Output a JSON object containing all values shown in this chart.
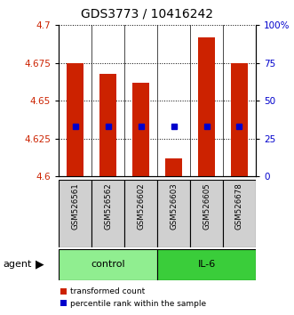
{
  "title": "GDS3773 / 10416242",
  "samples": [
    "GSM526561",
    "GSM526562",
    "GSM526602",
    "GSM526603",
    "GSM526605",
    "GSM526678"
  ],
  "groups": [
    "control",
    "control",
    "control",
    "IL-6",
    "IL-6",
    "IL-6"
  ],
  "red_values": [
    4.675,
    4.668,
    4.662,
    4.612,
    4.692,
    4.675
  ],
  "blue_values": [
    4.633,
    4.633,
    4.633,
    4.633,
    4.633,
    4.633
  ],
  "ylim_left": [
    4.6,
    4.7
  ],
  "ylim_right": [
    0,
    100
  ],
  "yticks_left": [
    4.6,
    4.625,
    4.65,
    4.675,
    4.7
  ],
  "yticks_right": [
    0,
    25,
    50,
    75,
    100
  ],
  "ytick_labels_right": [
    "0",
    "25",
    "50",
    "75",
    "100%"
  ],
  "ytick_labels_left": [
    "4.6",
    "4.625",
    "4.65",
    "4.675",
    "4.7"
  ],
  "bar_bottom": 4.6,
  "bar_width": 0.5,
  "control_color": "#90EE90",
  "il6_color": "#3ACD3A",
  "red_color": "#CC2200",
  "blue_color": "#0000CC",
  "legend_red": "transformed count",
  "legend_blue": "percentile rank within the sample",
  "agent_label": "agent"
}
